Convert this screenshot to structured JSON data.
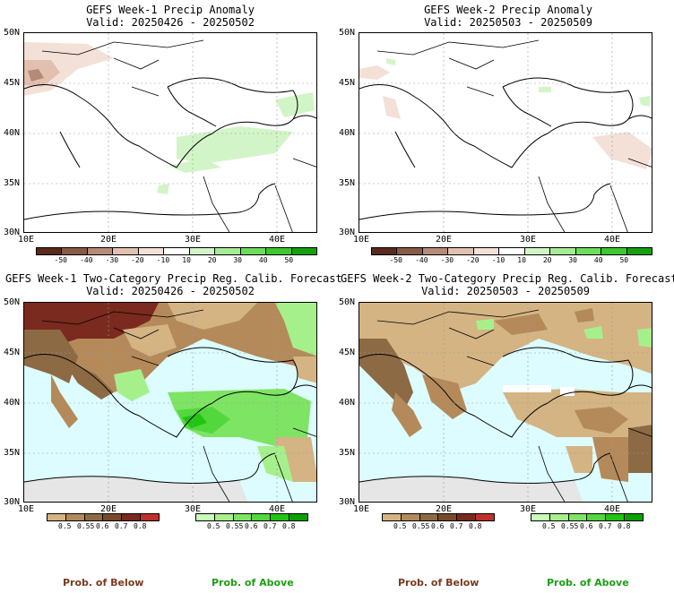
{
  "panels": [
    {
      "title": "GEFS Week-1 Precip Anomaly",
      "valid": "Valid: 20250426 - 20250502",
      "lat_labels": [
        "50N",
        "45N",
        "40N",
        "35N",
        "30N"
      ],
      "lon_labels": [
        "10E",
        "20E",
        "30E",
        "40E"
      ]
    },
    {
      "title": "GEFS Week-2 Precip Anomaly",
      "valid": "Valid: 20250503 - 20250509",
      "lat_labels": [
        "50N",
        "45N",
        "40N",
        "35N",
        "30N"
      ],
      "lon_labels": [
        "10E",
        "20E",
        "30E",
        "40E"
      ]
    },
    {
      "title": "GEFS Week-1 Two-Category Precip Reg. Calib. Forecast",
      "valid": "Valid: 20250426 - 20250502",
      "lat_labels": [
        "50N",
        "45N",
        "40N",
        "35N",
        "30N"
      ],
      "lon_labels": [
        "10E",
        "20E",
        "30E",
        "40E"
      ]
    },
    {
      "title": "GEFS Week-2 Two-Category Precip Reg. Calib. Forecast",
      "valid": "Valid: 20250503 - 20250509",
      "lat_labels": [
        "50N",
        "45N",
        "40N",
        "35N",
        "30N"
      ],
      "lon_labels": [
        "10E",
        "20E",
        "30E",
        "40E"
      ]
    }
  ],
  "anomaly_colorbar": {
    "colors": [
      "#5a2a1a",
      "#8a5a44",
      "#b78a78",
      "#e2c0b0",
      "#f3e0d6",
      "#ffffff",
      "#d2f5c8",
      "#a6ec96",
      "#6edc5a",
      "#3cc82e",
      "#14a00e"
    ],
    "ticks": [
      "-50",
      "-40",
      "-30",
      "-20",
      "-10",
      "10",
      "20",
      "30",
      "40",
      "50"
    ]
  },
  "below_colorbar": {
    "colors": [
      "#d4b483",
      "#b48a5a",
      "#8c6a44",
      "#7a4a24",
      "#7a2a1e",
      "#c0302a"
    ],
    "ticks": [
      "0.5",
      "0.55",
      "0.6",
      "0.7",
      "0.8"
    ]
  },
  "above_colorbar": {
    "colors": [
      "#c8ffb8",
      "#a6f08c",
      "#7ee464",
      "#52d83c",
      "#22c414",
      "#0aa000"
    ],
    "ticks": [
      "0.5",
      "0.55",
      "0.6",
      "0.7",
      "0.8"
    ]
  },
  "legend": {
    "below_label": "Prob. of Below",
    "above_label": "Prob. of Above",
    "below_color": "#7a3a1e",
    "above_color": "#1aa012"
  },
  "colors": {
    "sea_prob": "#dcfcff",
    "land_outside": "#e6e6e6"
  }
}
